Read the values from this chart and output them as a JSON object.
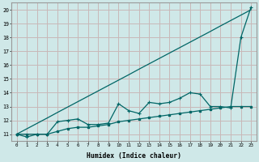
{
  "xlabel": "Humidex (Indice chaleur)",
  "background_color": "#cfe8e8",
  "grid_color": "#c8b8b8",
  "line_color": "#006666",
  "xlim": [
    -0.5,
    23.5
  ],
  "ylim": [
    10.5,
    20.5
  ],
  "xticks": [
    0,
    1,
    2,
    3,
    4,
    5,
    6,
    7,
    8,
    9,
    10,
    11,
    12,
    13,
    14,
    15,
    16,
    17,
    18,
    19,
    20,
    21,
    22,
    23
  ],
  "yticks": [
    11,
    12,
    13,
    14,
    15,
    16,
    17,
    18,
    19,
    20
  ],
  "x": [
    0,
    1,
    2,
    3,
    4,
    5,
    6,
    7,
    8,
    9,
    10,
    11,
    12,
    13,
    14,
    15,
    16,
    17,
    18,
    19,
    20,
    21,
    22,
    23
  ],
  "line_diagonal": [
    11,
    11.39,
    11.78,
    12.17,
    12.57,
    12.96,
    13.35,
    13.74,
    14.13,
    14.52,
    14.91,
    15.3,
    15.7,
    16.09,
    16.48,
    16.87,
    17.26,
    17.65,
    18.04,
    18.43,
    18.83,
    19.22,
    19.61,
    20.0
  ],
  "line_jagged": [
    11,
    10.8,
    11,
    11,
    11.9,
    12,
    12.1,
    11.7,
    11.7,
    11.8,
    13.2,
    12.7,
    12.5,
    13.3,
    13.2,
    13.3,
    13.6,
    14.0,
    13.9,
    13.0,
    13.0,
    12.9,
    18.0,
    20.2
  ],
  "line_smooth": [
    11,
    11,
    11,
    11,
    11.2,
    11.4,
    11.5,
    11.5,
    11.6,
    11.7,
    11.9,
    12.0,
    12.1,
    12.2,
    12.3,
    12.4,
    12.5,
    12.6,
    12.7,
    12.8,
    12.9,
    13.0,
    13.0,
    13.0
  ]
}
